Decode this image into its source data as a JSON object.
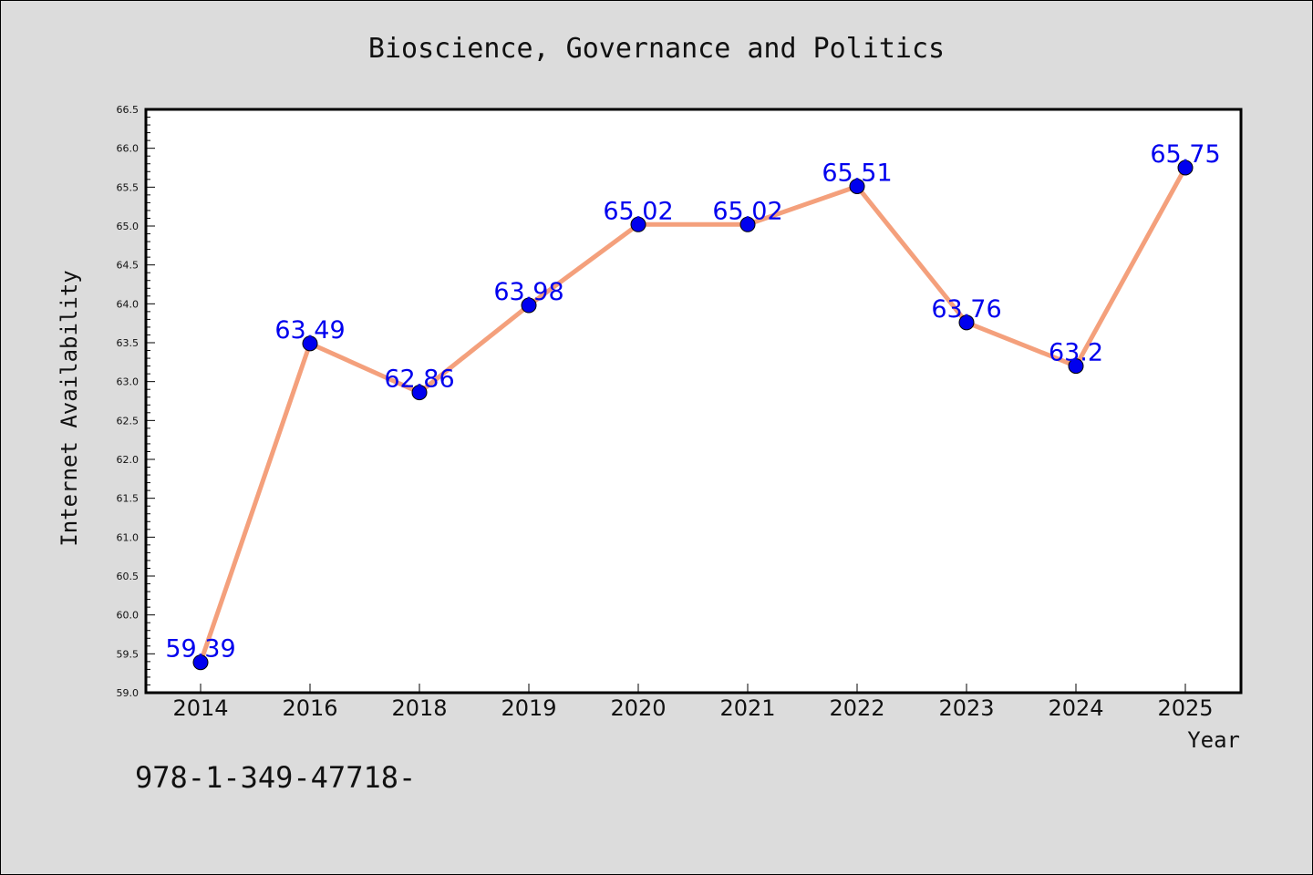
{
  "chart_data": {
    "type": "line",
    "title": "Bioscience, Governance and Politics",
    "xlabel": "Year",
    "ylabel": "Internet Availability",
    "categories": [
      "2014",
      "2016",
      "2018",
      "2019",
      "2020",
      "2021",
      "2022",
      "2023",
      "2024",
      "2025"
    ],
    "values": [
      59.39,
      63.49,
      62.86,
      63.98,
      65.02,
      65.02,
      65.51,
      63.76,
      63.2,
      65.75
    ],
    "data_labels": [
      "59.39",
      "63.49",
      "62.86",
      "63.98",
      "65.02",
      "65.02",
      "65.51",
      "63.76",
      "63.2",
      "65.75"
    ],
    "ylim": [
      59.0,
      66.5
    ],
    "ytick_step": 0.5,
    "yticks": [
      "59.0",
      "59.5",
      "60.0",
      "60.5",
      "61.0",
      "61.5",
      "62.0",
      "62.5",
      "63.0",
      "63.5",
      "64.0",
      "64.5",
      "65.0",
      "65.5",
      "66.0",
      "66.5"
    ],
    "grid": false,
    "line_color": "#f4a07c",
    "marker_color": "#0000ee",
    "label_color": "#0000ee"
  },
  "footer_text": "978-1-349-47718-"
}
